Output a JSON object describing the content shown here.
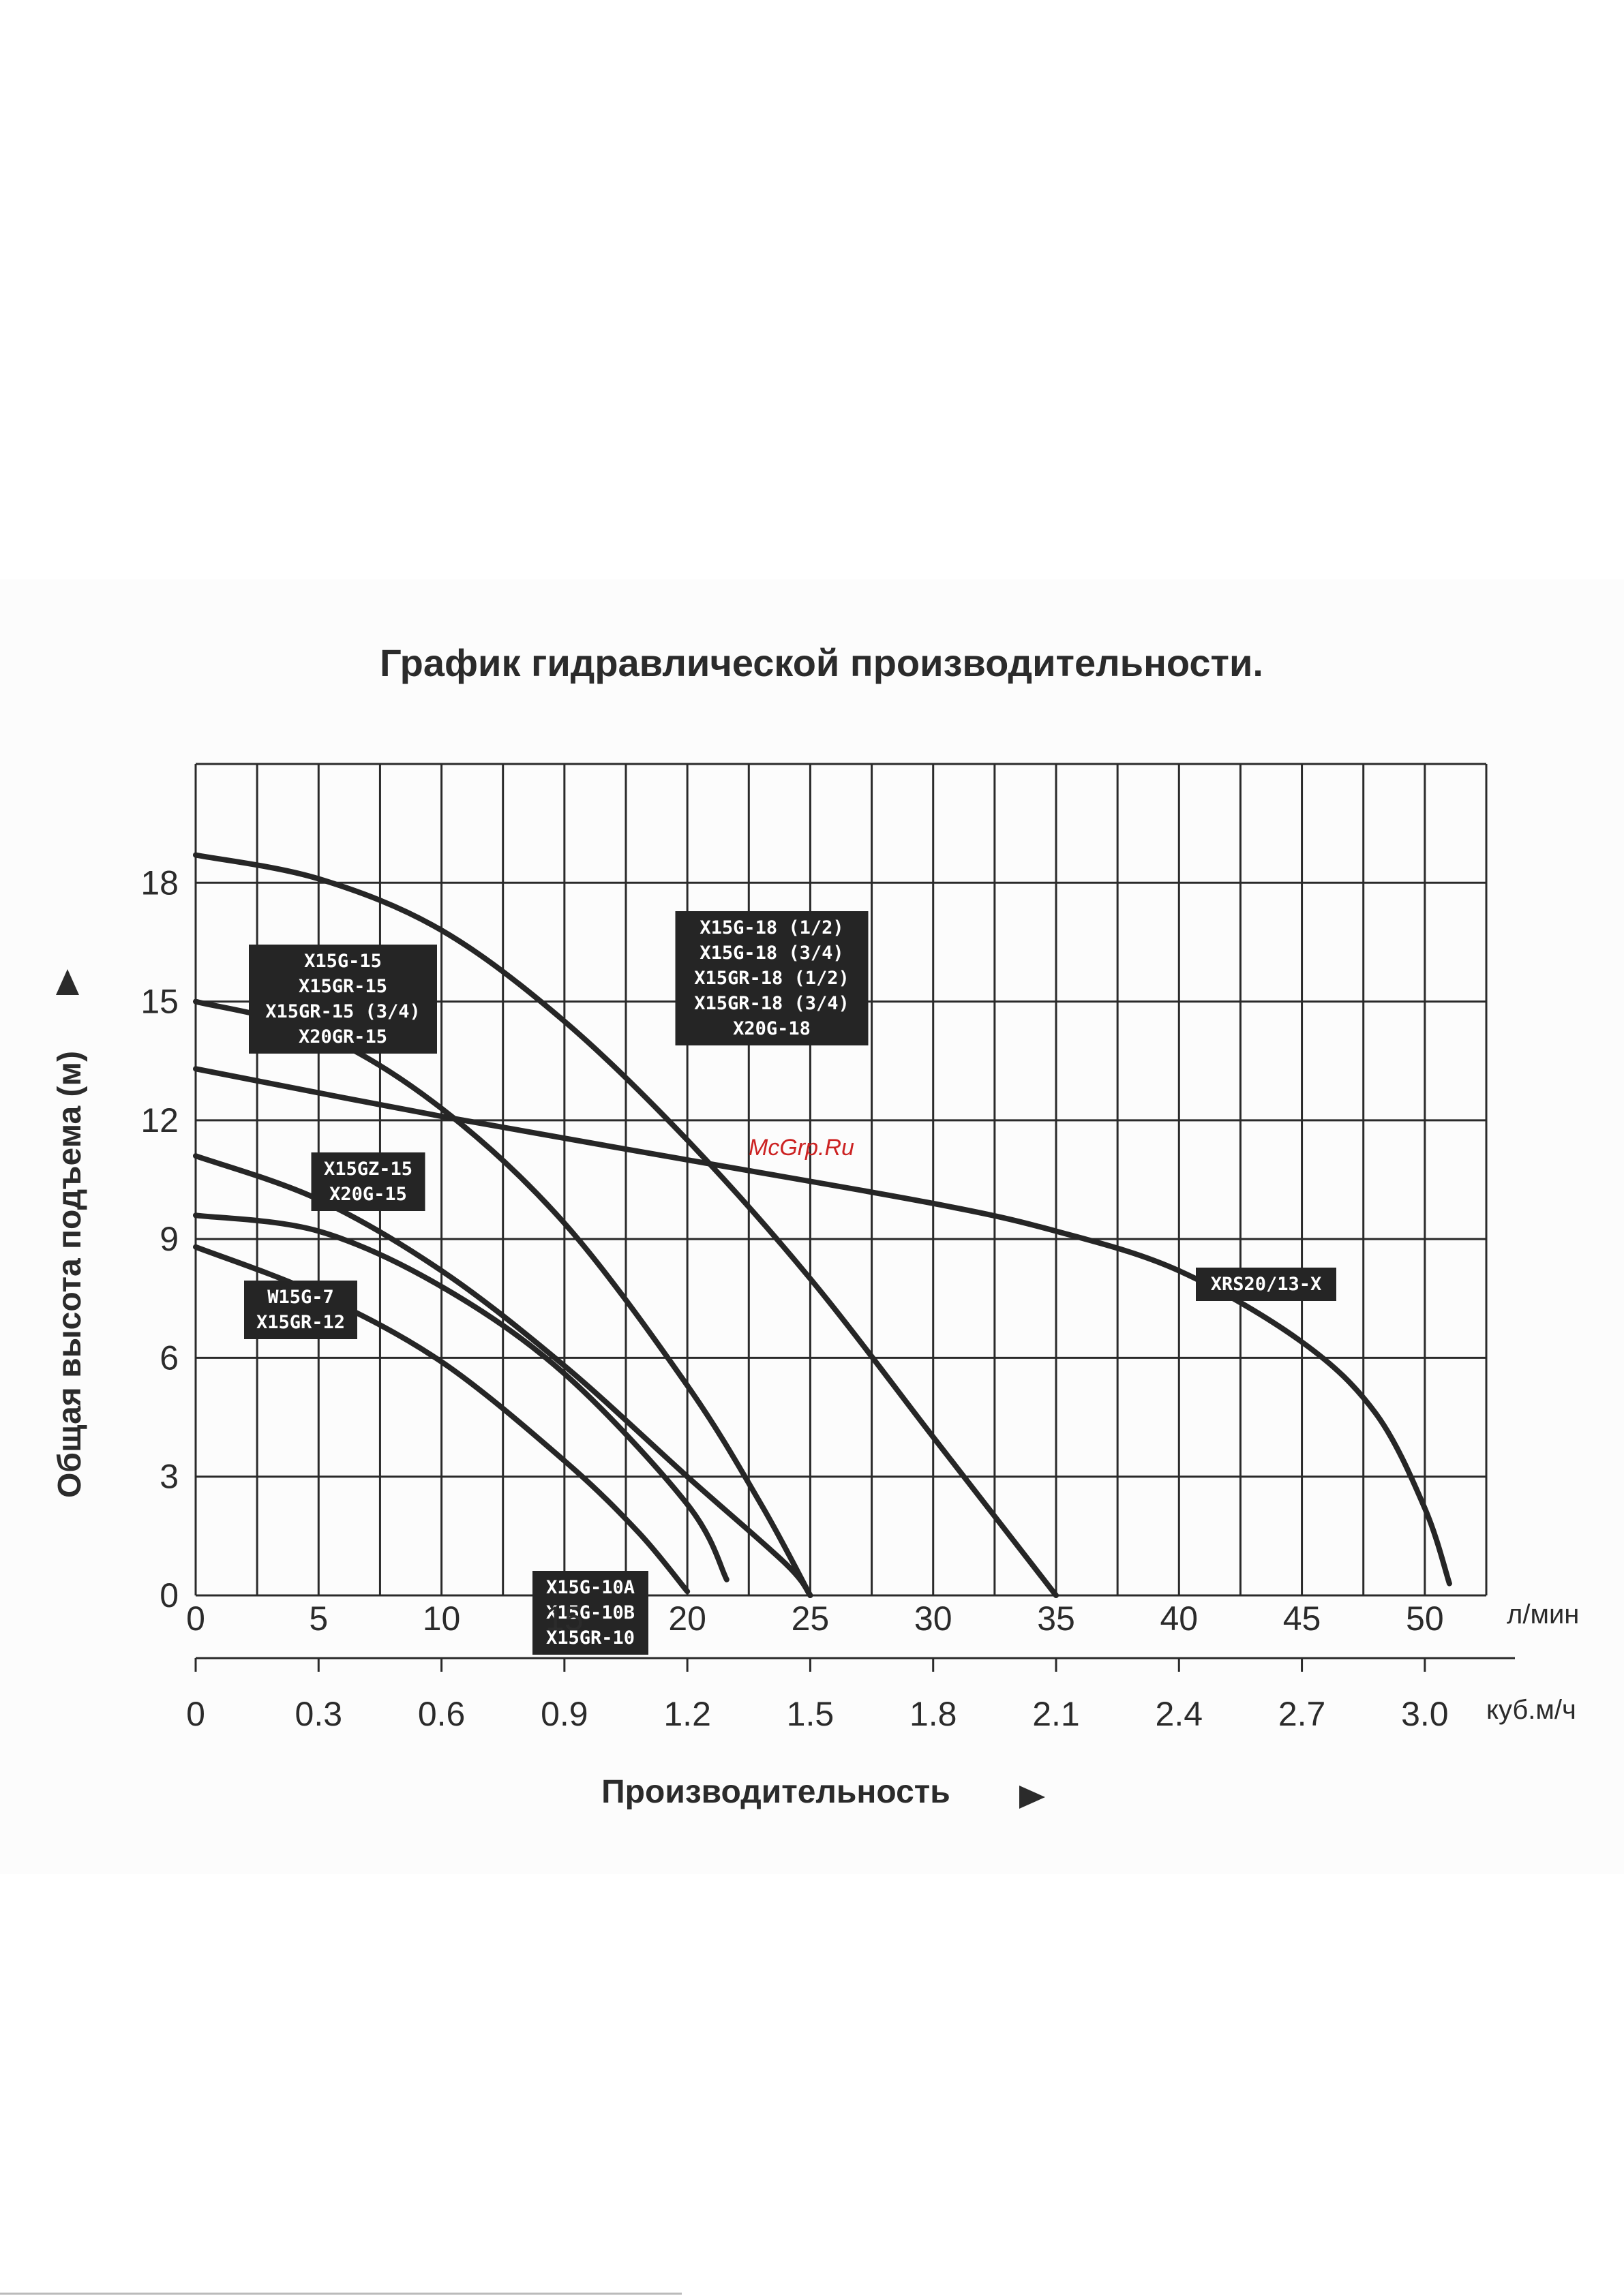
{
  "watermark": "McGrp.Ru",
  "chart_data": {
    "type": "line",
    "title": "График гидравлической производительности.",
    "xlabel": "Производительность",
    "ylabel": "Общая высота подъема (м)",
    "x_unit": "л/мин",
    "x2_unit": "куб.м/ч",
    "xlim": [
      0,
      52.5
    ],
    "ylim": [
      0,
      21
    ],
    "x_ticks": [
      "0",
      "5",
      "10",
      "15",
      "20",
      "25",
      "30",
      "35",
      "40",
      "45",
      "50"
    ],
    "x2_ticks": [
      "0",
      "0.3",
      "0.6",
      "0.9",
      "1.2",
      "1.5",
      "1.8",
      "2.1",
      "2.4",
      "2.7",
      "3.0"
    ],
    "y_ticks": [
      "0",
      "3",
      "6",
      "9",
      "12",
      "15",
      "18"
    ],
    "grid": true,
    "series": [
      {
        "name": "X15G-18 (1/2)\nX15G-18 (3/4)\nX15GR-18 (1/2)\nX15GR-18 (3/4)\nX20G-18",
        "x": [
          0,
          5,
          10,
          15,
          20,
          25,
          30,
          33,
          35
        ],
        "y": [
          18.7,
          18.1,
          16.8,
          14.5,
          11.5,
          8.0,
          4.0,
          1.6,
          0
        ]
      },
      {
        "name": "X15G-15\nX15GR-15\nX15GR-15 (3/4)\nX20GR-15",
        "x": [
          0,
          5,
          10,
          15,
          20,
          23,
          25
        ],
        "y": [
          15.0,
          14.2,
          12.3,
          9.4,
          5.3,
          2.3,
          0
        ]
      },
      {
        "name": "XRS20/13-X",
        "x": [
          0,
          10,
          20,
          30,
          35,
          40,
          45,
          48,
          50,
          51
        ],
        "y": [
          13.3,
          12.1,
          11.0,
          9.9,
          9.2,
          8.2,
          6.4,
          4.6,
          2.2,
          0.3
        ]
      },
      {
        "name": "X15GZ-15\nX20G-15",
        "x": [
          0,
          5,
          10,
          15,
          20,
          24,
          25
        ],
        "y": [
          11.1,
          10.0,
          8.2,
          5.8,
          3.0,
          0.8,
          0
        ]
      },
      {
        "name": "X15G-10A\nX15G-10B\nX15GR-10",
        "x": [
          0,
          5,
          10,
          15,
          20,
          21.6
        ],
        "y": [
          9.6,
          9.2,
          7.8,
          5.6,
          2.3,
          0.4
        ]
      },
      {
        "name": "W15G-7\nX15GR-12",
        "x": [
          0,
          5,
          10,
          15,
          18,
          20
        ],
        "y": [
          8.8,
          7.6,
          5.9,
          3.4,
          1.6,
          0.1
        ]
      }
    ]
  }
}
